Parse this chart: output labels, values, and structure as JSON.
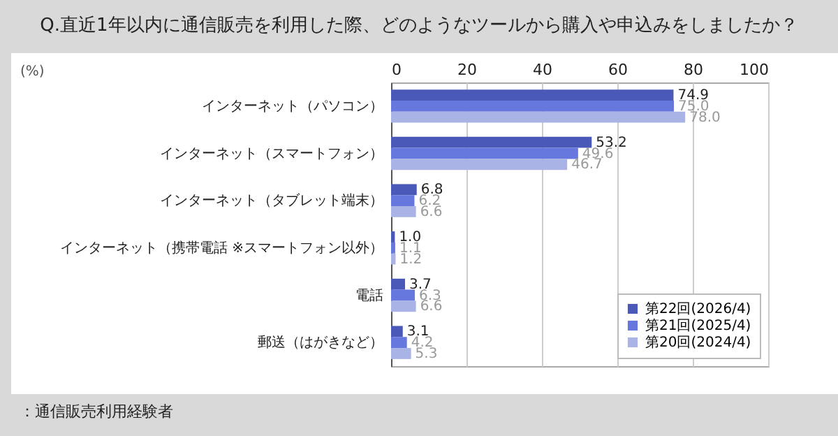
{
  "chart_data": {
    "type": "bar",
    "orientation": "horizontal",
    "title": "Q.直近1年以内に通信販売を利用した際、どのようなツールから購入や申込みをしましたか？",
    "xlabel": "(%)",
    "categories": [
      "インターネット（パソコン）",
      "インターネット（スマートフォン）",
      "インターネット（タブレット端末）",
      "インターネット（携帯電話 ※スマートフォン以外）",
      "電話",
      "郵送（はがきなど）"
    ],
    "series": [
      {
        "name": "第22回(2026/4)",
        "color": "#4a58b8",
        "values": [
          74.9,
          53.2,
          6.8,
          1.0,
          3.7,
          3.1
        ],
        "value_labels": [
          "74.9",
          "53.2",
          "6.8",
          "1.0",
          "3.7",
          "3.1"
        ]
      },
      {
        "name": "第21回(2025/4)",
        "color": "#6677dd",
        "values": [
          75.0,
          49.6,
          6.2,
          1.1,
          6.3,
          4.2
        ],
        "value_labels": [
          "75.0",
          "49.6",
          "6.2",
          "1.1",
          "6.3",
          "4.2"
        ]
      },
      {
        "name": "第20回(2024/4)",
        "color": "#aab3e6",
        "values": [
          78.0,
          46.7,
          6.6,
          1.2,
          6.6,
          5.3
        ],
        "value_labels": [
          "78.0",
          "46.7",
          "6.6",
          "1.2",
          "6.6",
          "5.3"
        ]
      }
    ],
    "xlim": [
      0,
      100
    ],
    "xticks": [
      0,
      20,
      40,
      60,
      80,
      100
    ],
    "grid": "x",
    "legend": "bottom right",
    "annotations": [
      "：通信販売利用経験者"
    ]
  }
}
